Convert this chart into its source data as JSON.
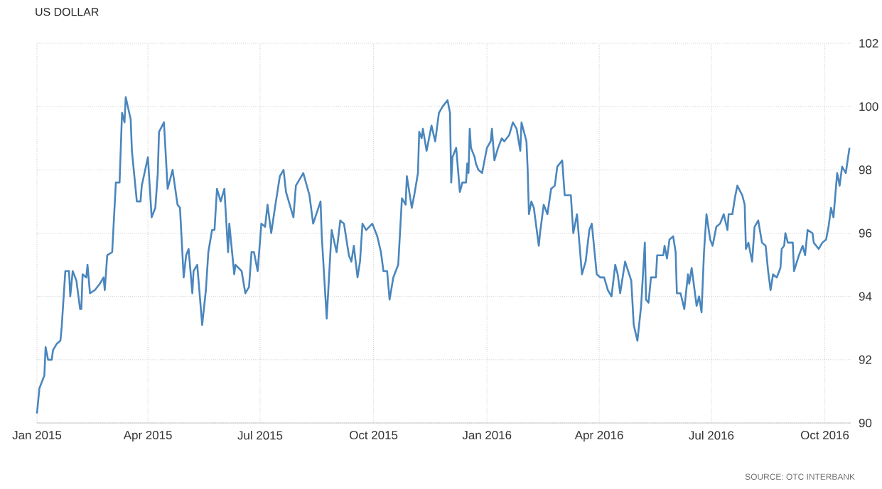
{
  "chart_data": {
    "type": "line",
    "title": "US DOLLAR",
    "annotations": [
      "SOURCE: OTC INTERBANK"
    ],
    "x": [
      "2015-01-01",
      "2015-01-03",
      "2015-01-07",
      "2015-01-08",
      "2015-01-10",
      "2015-01-13",
      "2015-01-14",
      "2015-01-17",
      "2015-01-20",
      "2015-01-21",
      "2015-01-24",
      "2015-01-27",
      "2015-01-28",
      "2015-01-30",
      "2015-02-02",
      "2015-02-05",
      "2015-02-06",
      "2015-02-07",
      "2015-02-10",
      "2015-02-11",
      "2015-02-13",
      "2015-02-17",
      "2015-02-21",
      "2015-02-24",
      "2015-02-25",
      "2015-02-27",
      "2015-03-03",
      "2015-03-06",
      "2015-03-09",
      "2015-03-11",
      "2015-03-13",
      "2015-03-14",
      "2015-03-18",
      "2015-03-19",
      "2015-03-23",
      "2015-03-26",
      "2015-03-27",
      "2015-04-01",
      "2015-04-04",
      "2015-04-07",
      "2015-04-09",
      "2015-04-10",
      "2015-04-14",
      "2015-04-17",
      "2015-04-21",
      "2015-04-25",
      "2015-04-27",
      "2015-04-30",
      "2015-05-02",
      "2015-05-04",
      "2015-05-07",
      "2015-05-08",
      "2015-05-11",
      "2015-05-15",
      "2015-05-18",
      "2015-05-20",
      "2015-05-23",
      "2015-05-25",
      "2015-05-27",
      "2015-05-30",
      "2015-06-02",
      "2015-06-05",
      "2015-06-06",
      "2015-06-10",
      "2015-06-11",
      "2015-06-16",
      "2015-06-19",
      "2015-06-22",
      "2015-06-24",
      "2015-06-26",
      "2015-06-29",
      "2015-07-02",
      "2015-07-05",
      "2015-07-07",
      "2015-07-10",
      "2015-07-13",
      "2015-07-17",
      "2015-07-20",
      "2015-07-22",
      "2015-07-28",
      "2015-07-30",
      "2015-08-05",
      "2015-08-10",
      "2015-08-13",
      "2015-08-19",
      "2015-08-20",
      "2015-08-24",
      "2015-08-28",
      "2015-09-01",
      "2015-09-04",
      "2015-09-07",
      "2015-09-11",
      "2015-09-13",
      "2015-09-15",
      "2015-09-18",
      "2015-09-20",
      "2015-09-22",
      "2015-09-25",
      "2015-09-30",
      "2015-10-04",
      "2015-10-07",
      "2015-10-09",
      "2015-10-12",
      "2015-10-14",
      "2015-10-17",
      "2015-10-21",
      "2015-10-24",
      "2015-10-27",
      "2015-10-28",
      "2015-11-01",
      "2015-11-03",
      "2015-11-06",
      "2015-11-07",
      "2015-11-09",
      "2015-11-10",
      "2015-11-13",
      "2015-11-17",
      "2015-11-20",
      "2015-11-23",
      "2015-11-26",
      "2015-11-30",
      "2015-12-02",
      "2015-12-03",
      "2015-12-04",
      "2015-12-07",
      "2015-12-10",
      "2015-12-12",
      "2015-12-15",
      "2015-12-16",
      "2015-12-17",
      "2015-12-18",
      "2015-12-19",
      "2015-12-22",
      "2015-12-23",
      "2015-12-25",
      "2015-12-28",
      "2016-01-01",
      "2016-01-04",
      "2016-01-05",
      "2016-01-07",
      "2016-01-10",
      "2016-01-13",
      "2016-01-15",
      "2016-01-19",
      "2016-01-22",
      "2016-01-25",
      "2016-01-28",
      "2016-01-29",
      "2016-02-02",
      "2016-02-03",
      "2016-02-04",
      "2016-02-06",
      "2016-02-08",
      "2016-02-12",
      "2016-02-13",
      "2016-02-16",
      "2016-02-19",
      "2016-02-22",
      "2016-02-25",
      "2016-02-27",
      "2016-03-02",
      "2016-03-04",
      "2016-03-09",
      "2016-03-11",
      "2016-03-14",
      "2016-03-18",
      "2016-03-21",
      "2016-03-24",
      "2016-03-26",
      "2016-03-30",
      "2016-04-02",
      "2016-04-05",
      "2016-04-08",
      "2016-04-11",
      "2016-04-14",
      "2016-04-16",
      "2016-04-18",
      "2016-04-22",
      "2016-04-27",
      "2016-04-29",
      "2016-05-02",
      "2016-05-05",
      "2016-05-08",
      "2016-05-09",
      "2016-05-11",
      "2016-05-13",
      "2016-05-17",
      "2016-05-18",
      "2016-05-23",
      "2016-05-24",
      "2016-05-26",
      "2016-05-28",
      "2016-05-31",
      "2016-06-02",
      "2016-06-03",
      "2016-06-06",
      "2016-06-09",
      "2016-06-12",
      "2016-06-13",
      "2016-06-15",
      "2016-06-17",
      "2016-06-19",
      "2016-06-21",
      "2016-06-23",
      "2016-06-25",
      "2016-06-27",
      "2016-06-30",
      "2016-07-02",
      "2016-07-05",
      "2016-07-08",
      "2016-07-11",
      "2016-07-14",
      "2016-07-15",
      "2016-07-18",
      "2016-07-20",
      "2016-07-22",
      "2016-07-26",
      "2016-07-28",
      "2016-07-29",
      "2016-07-31",
      "2016-08-03",
      "2016-08-05",
      "2016-08-08",
      "2016-08-11",
      "2016-08-14",
      "2016-08-16",
      "2016-08-18",
      "2016-08-20",
      "2016-08-23",
      "2016-08-26",
      "2016-08-27",
      "2016-08-29",
      "2016-08-30",
      "2016-09-01",
      "2016-09-05",
      "2016-09-06",
      "2016-09-10",
      "2016-09-13",
      "2016-09-15",
      "2016-09-17",
      "2016-09-21",
      "2016-09-22",
      "2016-09-26",
      "2016-09-29",
      "2016-10-02",
      "2016-10-04",
      "2016-10-06",
      "2016-10-08",
      "2016-10-11",
      "2016-10-13",
      "2016-10-15",
      "2016-10-18",
      "2016-10-21"
    ],
    "series": [
      {
        "color": "#4a86bd",
        "values": [
          90.3,
          91.1,
          91.5,
          92.4,
          92.0,
          92.0,
          92.3,
          92.5,
          92.6,
          93.0,
          94.8,
          94.8,
          94.0,
          94.8,
          94.5,
          93.6,
          93.6,
          94.7,
          94.6,
          95.0,
          94.1,
          94.2,
          94.4,
          94.6,
          94.2,
          95.3,
          95.4,
          97.6,
          97.6,
          99.8,
          99.5,
          100.3,
          99.6,
          98.6,
          97.0,
          97.0,
          97.5,
          98.4,
          96.5,
          96.8,
          97.9,
          99.2,
          99.5,
          97.4,
          98.0,
          96.9,
          96.8,
          94.6,
          95.3,
          95.5,
          94.1,
          94.8,
          95.0,
          93.1,
          94.2,
          95.4,
          96.1,
          96.1,
          97.4,
          97.0,
          97.4,
          95.4,
          96.3,
          94.7,
          95.0,
          94.8,
          94.1,
          94.3,
          95.4,
          95.4,
          94.8,
          96.3,
          96.2,
          96.9,
          96.0,
          96.8,
          97.8,
          98.0,
          97.3,
          96.5,
          97.5,
          97.9,
          97.2,
          96.3,
          97.0,
          95.9,
          93.3,
          96.1,
          95.4,
          96.4,
          96.3,
          95.3,
          95.1,
          95.6,
          94.6,
          95.1,
          96.3,
          96.1,
          96.3,
          95.9,
          95.4,
          94.8,
          94.8,
          93.9,
          94.6,
          95.0,
          97.1,
          96.9,
          97.8,
          96.8,
          97.2,
          97.9,
          99.2,
          99.0,
          99.3,
          98.6,
          99.4,
          98.9,
          99.8,
          100.0,
          100.2,
          99.8,
          97.6,
          98.4,
          98.7,
          97.3,
          97.6,
          97.6,
          98.2,
          97.9,
          99.3,
          98.7,
          98.4,
          98.2,
          98.0,
          97.9,
          98.7,
          98.9,
          99.3,
          98.3,
          98.7,
          99.0,
          98.9,
          99.1,
          99.5,
          99.3,
          98.6,
          99.5,
          98.9,
          98.0,
          96.6,
          97.0,
          96.8,
          95.6,
          96.0,
          96.9,
          96.6,
          97.4,
          97.5,
          98.1,
          98.3,
          97.2,
          97.2,
          96.0,
          96.6,
          94.7,
          95.1,
          96.1,
          96.3,
          94.7,
          94.6,
          94.6,
          94.2,
          94.0,
          95.0,
          94.7,
          94.1,
          95.1,
          94.5,
          93.1,
          92.6,
          93.7,
          95.7,
          93.9,
          93.8,
          94.6,
          94.6,
          95.3,
          95.3,
          95.6,
          95.2,
          95.8,
          95.9,
          95.4,
          94.1,
          94.1,
          93.6,
          94.7,
          94.4,
          94.9,
          94.3,
          93.7,
          94.0,
          93.5,
          95.4,
          96.6,
          95.8,
          95.6,
          96.2,
          96.3,
          96.6,
          96.1,
          96.6,
          96.6,
          97.1,
          97.5,
          97.2,
          96.9,
          95.5,
          95.7,
          95.1,
          96.2,
          96.4,
          95.7,
          95.6,
          94.8,
          94.2,
          94.7,
          94.6,
          94.9,
          95.5,
          95.6,
          96.0,
          95.7,
          95.7,
          94.8,
          95.3,
          95.6,
          95.3,
          96.1,
          96.0,
          95.7,
          95.5,
          95.7,
          95.8,
          96.2,
          96.8,
          96.5,
          97.9,
          97.5,
          98.1,
          97.9,
          98.7
        ]
      }
    ],
    "xlim": [
      "2015-01-01",
      "2016-10-22"
    ],
    "xticks": [
      {
        "value": "2015-01-01",
        "label": "Jan 2015"
      },
      {
        "value": "2015-04-01",
        "label": "Apr 2015"
      },
      {
        "value": "2015-07-01",
        "label": "Jul 2015"
      },
      {
        "value": "2015-10-01",
        "label": "Oct 2015"
      },
      {
        "value": "2016-01-01",
        "label": "Jan 2016"
      },
      {
        "value": "2016-04-01",
        "label": "Apr 2016"
      },
      {
        "value": "2016-07-01",
        "label": "Jul 2016"
      },
      {
        "value": "2016-10-01",
        "label": "Oct 2016"
      }
    ],
    "ylim": [
      90,
      102
    ],
    "yticks": [
      90,
      92,
      94,
      96,
      98,
      100,
      102
    ],
    "grid": true
  }
}
